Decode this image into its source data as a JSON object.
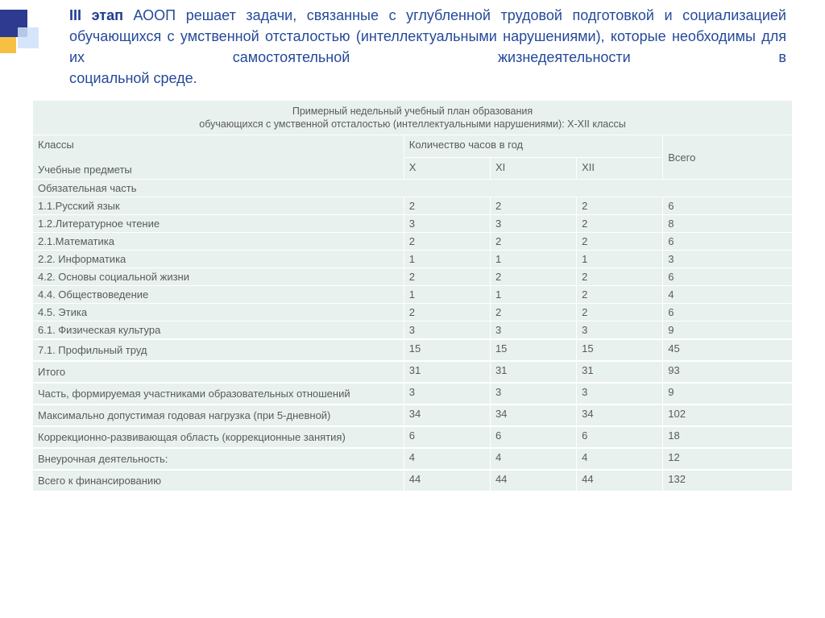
{
  "heading": {
    "stage": "III этап",
    "rest": " АООП решает задачи, связанные с углубленной трудовой подготовкой и социализацией обучающихся с умственной отсталостью (интеллектуальными нарушениями), которые необходимы для их самостоятельной жизнедеятельности в",
    "last": "социальной среде."
  },
  "colors": {
    "heading_text": "#254a9a",
    "table_bg": "#e8f1ed",
    "table_text": "#5a5a5a",
    "border": "#ffffff"
  },
  "table": {
    "title1": "Примерный недельный учебный план образования",
    "title2": "обучающихся с умственной отсталостью (интеллектуальными нарушениями): X-XII классы",
    "header_left_top": "Классы",
    "header_left_bottom": "Учебные предметы",
    "header_group": "Количество часов в год",
    "cols": [
      "X",
      "XI",
      "XII",
      "Всего"
    ],
    "section1": "Обязательная часть",
    "rows": [
      {
        "label": "1.1.Русский язык",
        "x": "2",
        "xi": "2",
        "xii": "2",
        "total": "6"
      },
      {
        "label": "1.2.Литературное чтение",
        "x": "3",
        "xi": "3",
        "xii": "2",
        "total": "8"
      },
      {
        "label": "2.1.Математика",
        "x": "2",
        "xi": "2",
        "xii": "2",
        "total": "6"
      },
      {
        "label": "2.2. Информатика",
        "x": "1",
        "xi": "1",
        "xii": "1",
        "total": "3"
      },
      {
        "label": "4.2. Основы социальной жизни",
        "x": "2",
        "xi": "2",
        "xii": "2",
        "total": "6"
      },
      {
        "label": "4.4. Обществоведение",
        "x": "1",
        "xi": "1",
        "xii": "2",
        "total": "4"
      },
      {
        "label": "4.5. Этика",
        "x": "2",
        "xi": "2",
        "xii": "2",
        "total": "6"
      },
      {
        "label": "6.1. Физическая культура",
        "x": "3",
        "xi": "3",
        "xii": "3",
        "total": "9"
      }
    ],
    "sums": [
      {
        "label": "7.1. Профильный труд",
        "x": "15",
        "xi": "15",
        "xii": "15",
        "total": "45"
      },
      {
        "label": "Итого",
        "x": "31",
        "xi": "31",
        "xii": "31",
        "total": "93"
      },
      {
        "label": "Часть, формируемая участниками образовательных отношений",
        "x": "3",
        "xi": "3",
        "xii": "3",
        "total": "9"
      },
      {
        "label": "Максимально допустимая годовая нагрузка (при 5-дневной)",
        "x": "34",
        "xi": "34",
        "xii": "34",
        "total": "102"
      },
      {
        "label": "Коррекционно-развивающая область (коррекционные занятия)",
        "x": "6",
        "xi": "6",
        "xii": "6",
        "total": "18"
      },
      {
        "label": "Внеурочная деятельность:",
        "x": "4",
        "xi": "4",
        "xii": "4",
        "total": "12"
      },
      {
        "label": "Всего к финансированию",
        "x": "44",
        "xi": "44",
        "xii": "44",
        "total": "132"
      }
    ]
  }
}
